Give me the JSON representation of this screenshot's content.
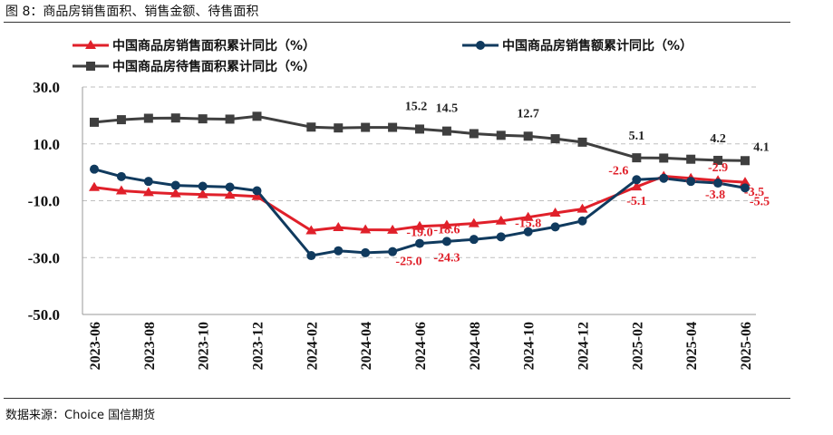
{
  "figure": {
    "title": "图 8：商品房销售面积、销售金额、待售面积",
    "source": "数据来源：Choice  国信期货"
  },
  "colors": {
    "red": "#e0202a",
    "blue": "#103a5e",
    "gray": "#3f3f3f",
    "redLabel": "#e0202a",
    "grayLabel": "#222222",
    "axisText": "#111111",
    "grid": "#bfbfbf"
  },
  "chart_data": {
    "type": "line",
    "title": "",
    "xlabel": "",
    "ylabel": "",
    "ylim": [
      -50,
      30
    ],
    "yticks": [
      30,
      10,
      -10,
      -30,
      -50
    ],
    "ytick_labels": [
      "30.0",
      "10.0",
      "-10.0",
      "-30.0",
      "-50.0"
    ],
    "grid": "horizontal dashed",
    "legend_position": "top",
    "x": [
      "2023-06",
      "2023-07",
      "2023-08",
      "2023-09",
      "2023-10",
      "2023-11",
      "2023-12",
      "2024-01",
      "2024-02",
      "2024-03",
      "2024-04",
      "2024-05",
      "2024-06",
      "2024-07",
      "2024-08",
      "2024-09",
      "2024-10",
      "2024-11",
      "2024-12",
      "2025-01",
      "2025-02",
      "2025-03",
      "2025-04",
      "2025-05",
      "2025-06"
    ],
    "xtick_labels": [
      "2023-06",
      "2023-08",
      "2023-10",
      "2023-12",
      "2024-02",
      "2024-04",
      "2024-06",
      "2024-08",
      "2024-10",
      "2024-12",
      "2025-02",
      "2025-04",
      "2025-06"
    ],
    "series": [
      {
        "name": "中国商品房销售面积累计同比（%）",
        "color": "red",
        "marker": "triangle",
        "values": [
          -5.3,
          -6.5,
          -7.1,
          -7.5,
          -7.8,
          -8.0,
          -8.5,
          null,
          -20.5,
          -19.4,
          -20.2,
          -20.3,
          -19.0,
          -18.6,
          -18.0,
          -17.1,
          -15.8,
          -14.3,
          -12.9,
          null,
          -5.1,
          -1.4,
          -2.1,
          -2.9,
          -3.5
        ],
        "labels": [
          {
            "index": 12,
            "text": "-19.0"
          },
          {
            "index": 13,
            "text": "-18.6"
          },
          {
            "index": 16,
            "text": "-15.8"
          },
          {
            "index": 20,
            "text": "-5.1"
          },
          {
            "index": 23,
            "text": "-2.9"
          },
          {
            "index": 24,
            "text": "-3.5"
          }
        ]
      },
      {
        "name": "中国商品房销售额累计同比（%）",
        "color": "blue",
        "marker": "circle",
        "values": [
          1.1,
          -1.5,
          -3.2,
          -4.6,
          -4.9,
          -5.2,
          -6.5,
          null,
          -29.3,
          -27.6,
          -28.3,
          -27.9,
          -25.0,
          -24.3,
          -23.6,
          -22.7,
          -20.9,
          -19.2,
          -17.1,
          null,
          -2.6,
          -2.1,
          -3.2,
          -3.8,
          -5.5
        ],
        "labels": [
          {
            "index": 12,
            "text": "-25.0"
          },
          {
            "index": 13,
            "text": "-24.3"
          },
          {
            "index": 20,
            "text": "-2.6"
          },
          {
            "index": 23,
            "text": "-3.8"
          },
          {
            "index": 24,
            "text": "-5.5"
          }
        ]
      },
      {
        "name": "中国商品房待售面积累计同比（%）",
        "color": "gray",
        "marker": "square",
        "values": [
          17.6,
          18.5,
          19.0,
          19.1,
          18.8,
          18.7,
          19.7,
          null,
          15.9,
          15.6,
          15.8,
          15.8,
          15.2,
          14.5,
          13.6,
          13.0,
          12.7,
          11.8,
          10.6,
          null,
          5.1,
          5.0,
          4.6,
          4.2,
          4.1
        ],
        "labels": [
          {
            "index": 12,
            "text": "15.2"
          },
          {
            "index": 13,
            "text": "14.5"
          },
          {
            "index": 16,
            "text": "12.7"
          },
          {
            "index": 20,
            "text": "5.1"
          },
          {
            "index": 23,
            "text": "4.2"
          },
          {
            "index": 24,
            "text": "4.1"
          }
        ]
      }
    ]
  }
}
